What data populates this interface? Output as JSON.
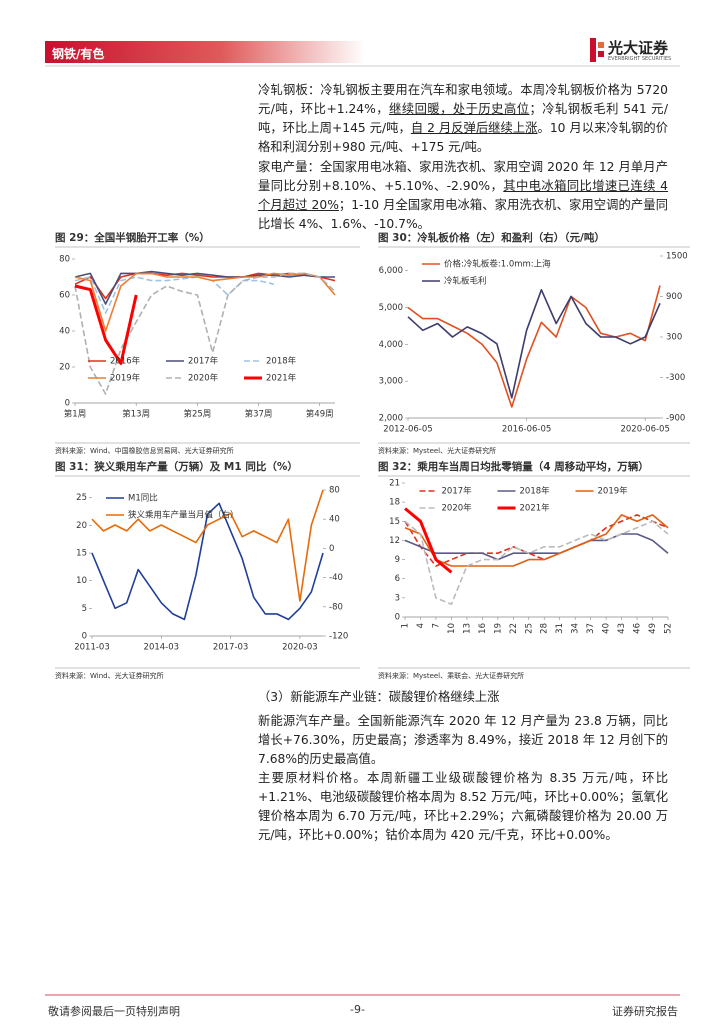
{
  "header": {
    "section": "钢铁/有色",
    "logo_name": "光大证券",
    "logo_en": "EVERBRIGHT SECURITIES"
  },
  "body": {
    "paragraphs": [
      {
        "parts": [
          "冷轧钢板：冷轧钢板主要用在汽车和家电领域。本周冷轧钢板价格为 5720 元/吨，环比+1.24%，",
          "继续回暖，处于历史高位",
          "；冷轧钢板毛利 541 元/吨，环比上周+145 元/吨，",
          "自 2 月反弹后继续上涨",
          "。10 月以来冷轧钢的价格和利润分别+980 元/吨、+175 元/吨。"
        ]
      },
      {
        "parts": [
          "家电产量：全国家用电冰箱、家用洗衣机、家用空调 2020 年 12 月单月产量同比分别+8.10%、+5.10%、-2.90%，",
          "其中电冰箱同比增速已连续 4 个月超过 20%",
          "；1-10 月全国家用电冰箱、家用洗衣机、家用空调的产量同比增长 4%、1.6%、-10.7%。"
        ]
      }
    ],
    "section": "（3）新能源车产业链：碳酸锂价格继续上涨",
    "paragraphs2": [
      "新能源汽车产量。全国新能源汽车 2020 年 12 月产量为 23.8 万辆，同比增长+76.30%，历史最高；渗透率为 8.49%，接近 2018 年 12 月创下的 7.68%的历史最高值。",
      "主要原材料价格。本周新疆工业级碳酸锂价格为 8.35 万元/吨，环比+1.21%、电池级碳酸锂价格本周为 8.52 万元/吨，环比+0.00%；氢氧化锂价格本周为 6.70 万元/吨，环比+2.29%；六氟磷酸锂价格为 20.00 万元/吨，环比+0.00%；钴价本周为 420 元/千克，环比+0.00%。"
    ]
  },
  "figures": [
    {
      "title": "图 29：全国半钢胎开工率（%）",
      "source": "资料来源：Wind、中国橡胶信息贸易网、光大证券研究所",
      "chart": {
        "type": "line",
        "x": [
          1,
          4,
          7,
          10,
          13,
          16,
          19,
          22,
          25,
          28,
          31,
          34,
          37,
          40,
          43,
          46,
          49,
          52
        ],
        "xlim": [
          1,
          52
        ],
        "xticks": [
          {
            "value": 1,
            "label": "第1周"
          },
          {
            "value": 13,
            "label": "第13周"
          },
          {
            "value": 25,
            "label": "第25周"
          },
          {
            "value": 37,
            "label": "第37周"
          },
          {
            "value": 49,
            "label": "第49周"
          }
        ],
        "ylim": [
          0,
          80
        ],
        "yticks": [
          0,
          20,
          40,
          60,
          80
        ],
        "legend": "lower center",
        "series": [
          {
            "name": "2016年",
            "color": "#e0301e",
            "values": [
              66,
              70,
              58,
              70,
              72,
              72,
              71,
              72,
              71,
              70,
              70,
              70,
              72,
              71,
              72,
              71,
              70,
              68
            ]
          },
          {
            "name": "2017年",
            "color": "#4a4e7a",
            "values": [
              70,
              72,
              55,
              72,
              72,
              73,
              72,
              71,
              72,
              71,
              70,
              70,
              71,
              71,
              70,
              71,
              70,
              70
            ]
          },
          {
            "name": "2018年",
            "color": "#9dc3e6",
            "dash": true,
            "values": [
              68,
              70,
              50,
              68,
              70,
              68,
              68,
              69,
              70,
              68,
              60,
              68,
              68,
              66,
              null,
              null,
              null,
              null
            ]
          },
          {
            "name": "2019年",
            "color": "#ed7d31",
            "values": [
              70,
              68,
              40,
              65,
              72,
              72,
              70,
              70,
              70,
              68,
              69,
              70,
              70,
              72,
              71,
              72,
              70,
              60
            ]
          },
          {
            "name": "2020年",
            "color": "#b0b0b0",
            "dash": true,
            "values": [
              65,
              20,
              5,
              30,
              45,
              60,
              65,
              62,
              60,
              28,
              60,
              68,
              70,
              70,
              72,
              72,
              70,
              62
            ]
          },
          {
            "name": "2021年",
            "color": "#ff0000",
            "linewidth": 3,
            "values": [
              65,
              63,
              35,
              22,
              60,
              null,
              null,
              null,
              null,
              null,
              null,
              null,
              null,
              null,
              null,
              null,
              null,
              null
            ]
          }
        ]
      }
    },
    {
      "title": "图 30：冷轧板价格（左）和盈利（右）（元/吨）",
      "source": "资料来源：Mysteel、光大证券研究所",
      "chart": {
        "type": "line",
        "x": [
          "2012-06-05",
          "2012-12-05",
          "2013-06-05",
          "2013-12-05",
          "2014-06-05",
          "2014-12-05",
          "2015-06-05",
          "2015-12-05",
          "2016-06-05",
          "2016-12-05",
          "2017-06-05",
          "2017-12-05",
          "2018-06-05",
          "2018-12-05",
          "2019-06-05",
          "2019-12-05",
          "2020-06-05",
          "2020-12-05"
        ],
        "xticks": [
          "2012-06-05",
          "2016-06-05",
          "2020-06-05"
        ],
        "ylim": [
          2000,
          6400
        ],
        "yticks": [
          {
            "value": 2000,
            "label": "2,000"
          },
          {
            "value": 3000,
            "label": "3,000"
          },
          {
            "value": 4000,
            "label": "4,000"
          },
          {
            "value": 5000,
            "label": "5,000"
          },
          {
            "value": 6000,
            "label": "6,000"
          }
        ],
        "y2lim": [
          -900,
          1500
        ],
        "y2ticks": [
          -900,
          -300,
          300,
          900,
          1500
        ],
        "legend": "upper left",
        "series": [
          {
            "name": "价格:冷轧板卷:1.0mm:上海",
            "color": "#e05020",
            "values": [
              5000,
              4700,
              4700,
              4500,
              4300,
              4000,
              3500,
              2300,
              3600,
              4600,
              4200,
              5300,
              5000,
              4300,
              4200,
              4300,
              4100,
              5600
            ]
          },
          {
            "name": "冷轧板毛利",
            "color": "#3c3c6e",
            "axis": "y2",
            "values": [
              600,
              400,
              500,
              300,
              450,
              350,
              200,
              -600,
              400,
              1000,
              500,
              900,
              500,
              300,
              300,
              200,
              300,
              800
            ]
          }
        ]
      }
    },
    {
      "title": "图 31：狭义乘用车产量（万辆）及 M1 同比（%）",
      "source": "资料来源：Wind、光大证券研究所",
      "chart": {
        "type": "line",
        "x": [
          "2011-03",
          "2011-09",
          "2012-03",
          "2012-09",
          "2013-03",
          "2013-09",
          "2014-03",
          "2014-09",
          "2015-03",
          "2015-09",
          "2016-03",
          "2016-09",
          "2017-03",
          "2017-09",
          "2018-03",
          "2018-09",
          "2019-03",
          "2019-09",
          "2020-03",
          "2020-09",
          "2020-12"
        ],
        "xticks": [
          "2011-03",
          "2014-03",
          "2017-03",
          "2020-03"
        ],
        "ylim": [
          0,
          26.4
        ],
        "yticks": [
          0,
          5,
          10,
          15,
          20,
          25
        ],
        "y2lim": [
          -120,
          80
        ],
        "y2ticks": [
          -120,
          -80,
          -40,
          0,
          40,
          80
        ],
        "legend": "upper left",
        "series": [
          {
            "name": "M1同比",
            "color": "#1f3f99",
            "values": [
              15,
              10,
              5,
              6,
              12,
              9,
              6,
              4,
              3,
              11,
              22,
              24,
              19,
              14,
              7,
              4,
              4,
              3,
              5,
              8,
              15
            ]
          },
          {
            "name": "狭义乘用车产量当月值（右）",
            "color": "#e46c0a",
            "axis": "y2",
            "values": [
              40,
              24,
              32,
              24,
              40,
              24,
              32,
              24,
              16,
              8,
              32,
              40,
              48,
              16,
              24,
              16,
              8,
              40,
              -72,
              32,
              80
            ]
          }
        ]
      }
    },
    {
      "title": "图 32：乘用车当周日均批零销量（4 周移动平均，万辆）",
      "source": "资料来源：Mysteel、乘联会、光大证券研究所",
      "chart": {
        "type": "line",
        "x": [
          1,
          4,
          7,
          10,
          13,
          16,
          19,
          22,
          25,
          28,
          31,
          34,
          37,
          40,
          43,
          46,
          49,
          52
        ],
        "xlim": [
          1,
          52
        ],
        "xticks": [
          1,
          4,
          7,
          10,
          13,
          16,
          19,
          22,
          25,
          28,
          31,
          34,
          37,
          40,
          43,
          46,
          49,
          52
        ],
        "xtick_rotation": 90,
        "ylim": [
          0,
          21
        ],
        "yticks": [
          0,
          3,
          6,
          9,
          12,
          15,
          18,
          21
        ],
        "legend": "upper center",
        "series": [
          {
            "name": "2017年",
            "color": "#e0301e",
            "dash": true,
            "values": [
              15,
              11,
              8,
              9,
              10,
              10,
              10,
              11,
              10,
              9,
              10,
              11,
              12,
              14,
              15,
              16,
              15,
              14
            ]
          },
          {
            "name": "2018年",
            "color": "#5a5a8a",
            "values": [
              12,
              11,
              10,
              10,
              10,
              10,
              9,
              10,
              10,
              10,
              10,
              11,
              12,
              12,
              13,
              13,
              12,
              10
            ]
          },
          {
            "name": "2019年",
            "color": "#e06010",
            "values": [
              14,
              13,
              9,
              8,
              8,
              8,
              8,
              8,
              9,
              9,
              10,
              11,
              12,
              13,
              16,
              15,
              16,
              14
            ]
          },
          {
            "name": "2020年",
            "color": "#bbbbbb",
            "dash": true,
            "values": [
              15,
              13,
              3,
              2,
              8,
              9,
              9,
              11,
              10,
              11,
              11,
              12,
              13,
              12,
              13,
              14,
              15,
              13
            ]
          },
          {
            "name": "2021年",
            "color": "#ff0000",
            "linewidth": 3,
            "values": [
              17,
              15,
              9,
              7,
              null,
              null,
              null,
              null,
              null,
              null,
              null,
              null,
              null,
              null,
              null,
              null,
              null,
              null
            ]
          }
        ]
      }
    }
  ],
  "footer": {
    "left": "敬请参阅最后一页特别声明",
    "page": "-9-",
    "right": "证券研究报告"
  }
}
